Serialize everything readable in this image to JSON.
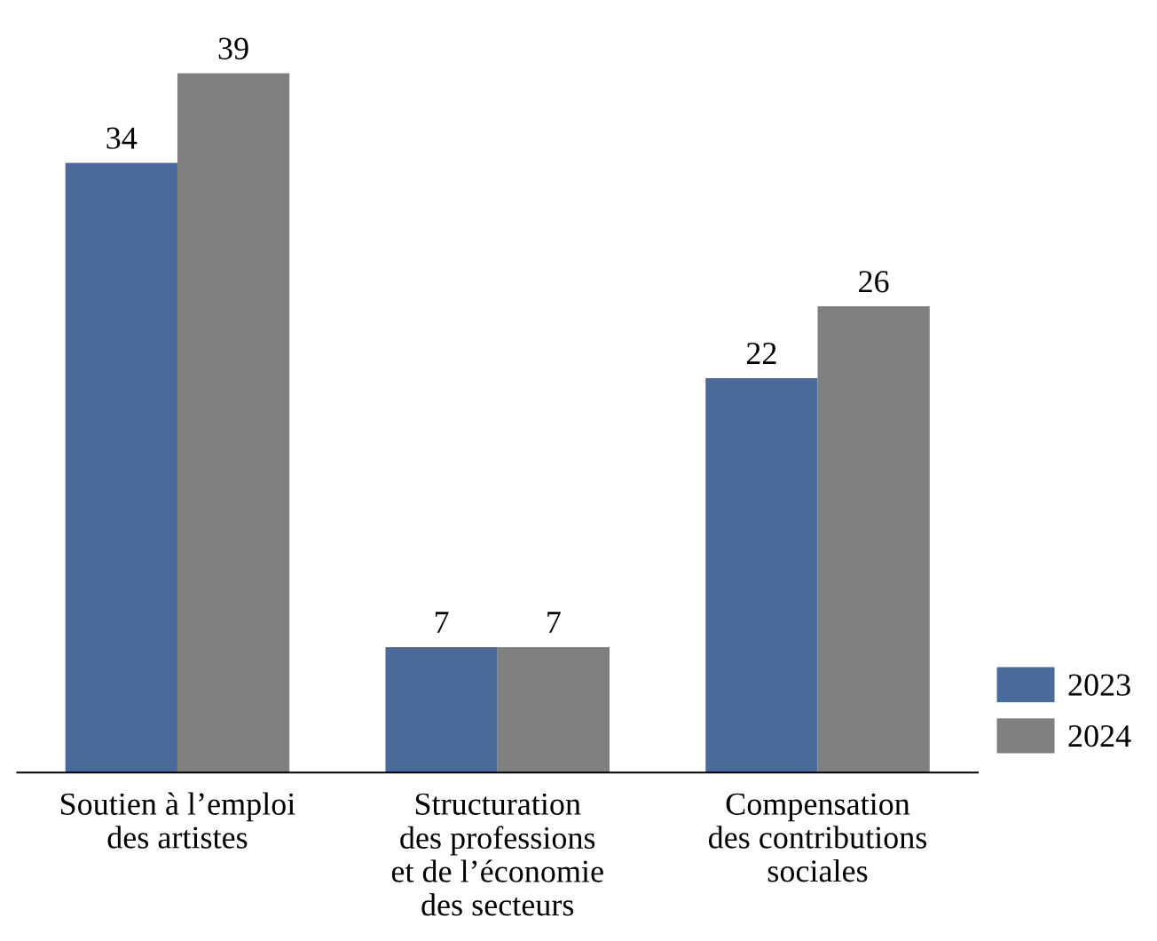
{
  "chart_data": {
    "type": "bar",
    "categories": [
      "Soutien à l’emploi\ndes artistes",
      "Structuration\ndes professions\net de l’économie\ndes secteurs",
      "Compensation\ndes contributions\nsociales"
    ],
    "series": [
      {
        "name": "2023",
        "color": "#4a6a9a",
        "values": [
          34,
          7,
          22
        ]
      },
      {
        "name": "2024",
        "color": "#808080",
        "values": [
          39,
          7,
          26
        ]
      }
    ],
    "data_labels": true,
    "legend": "bottom right",
    "grid": false
  }
}
